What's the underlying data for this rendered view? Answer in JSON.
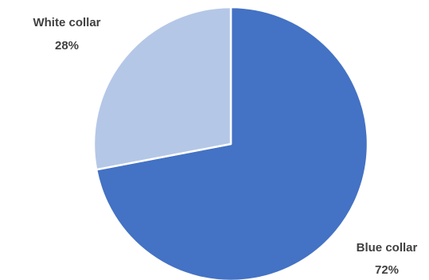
{
  "chart_data": {
    "type": "pie",
    "title": "",
    "categories": [
      "Blue collar",
      "White collar"
    ],
    "values": [
      72,
      28
    ],
    "unit": "%",
    "colors": [
      "#4472C4",
      "#B4C7E7"
    ],
    "start_angle_deg": 0,
    "direction": "clockwise",
    "legend": "none",
    "data_labels": [
      "Blue collar",
      "White collar"
    ],
    "percent_labels": [
      "72%",
      "28%"
    ]
  }
}
